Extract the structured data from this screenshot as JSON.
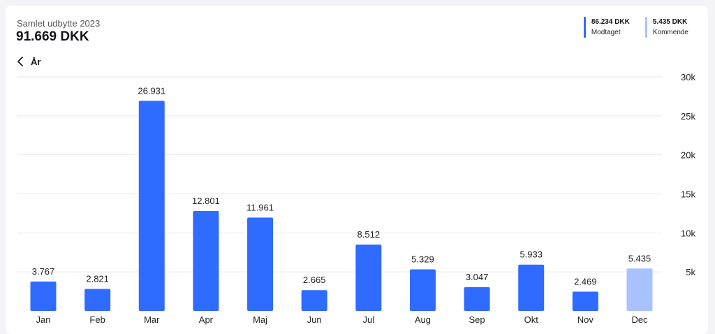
{
  "header": {
    "subtitle": "Samlet udbytte 2023",
    "total": "91.669 DKK"
  },
  "legend": [
    {
      "value": "86.234 DKK",
      "label": "Modtaget",
      "color": "#2f6bff"
    },
    {
      "value": "5.435 DKK",
      "label": "Kommende",
      "color": "#a9c2ff"
    }
  ],
  "nav": {
    "back_label": "År",
    "back_icon": "chevron-left-icon"
  },
  "colors": {
    "received": "#2f6bff",
    "upcoming": "#a9c2ff",
    "grid": "#e6e6ea"
  },
  "chart_data": {
    "type": "bar",
    "categories": [
      "Jan",
      "Feb",
      "Mar",
      "Apr",
      "Maj",
      "Jun",
      "Jul",
      "Aug",
      "Sep",
      "Okt",
      "Nov",
      "Dec"
    ],
    "values": [
      3767,
      2821,
      26931,
      12801,
      11961,
      2665,
      8512,
      5329,
      3047,
      5933,
      2469,
      5435
    ],
    "value_labels": [
      "3.767",
      "2.821",
      "26.931",
      "12.801",
      "11.961",
      "2.665",
      "8.512",
      "5.329",
      "3.047",
      "5.933",
      "2.469",
      "5.435"
    ],
    "status": [
      "received",
      "received",
      "received",
      "received",
      "received",
      "received",
      "received",
      "received",
      "received",
      "received",
      "received",
      "upcoming"
    ],
    "y_ticks": [
      5000,
      10000,
      15000,
      20000,
      25000,
      30000
    ],
    "y_tick_labels": [
      "5k",
      "10k",
      "15k",
      "20k",
      "25k",
      "30k"
    ],
    "ylim": [
      0,
      30000
    ],
    "y_axis_side": "right",
    "grid": true,
    "legend_position": "top-right"
  }
}
